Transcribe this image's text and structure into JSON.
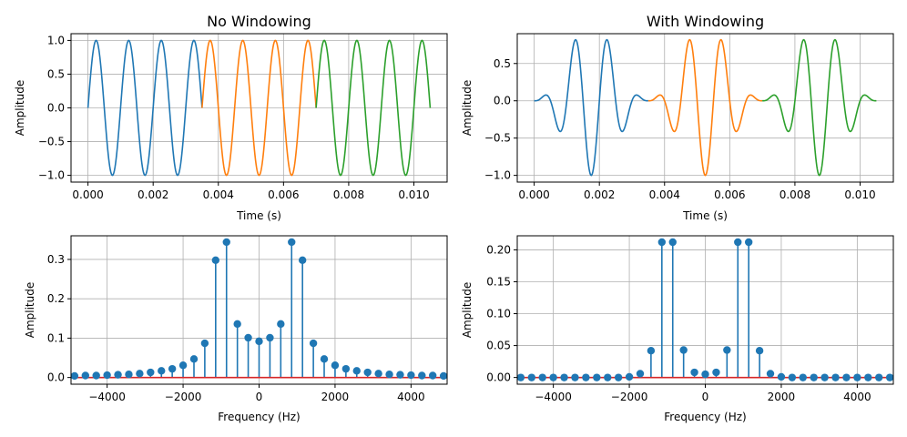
{
  "colors": {
    "blue": "#1f77b4",
    "orange": "#ff7f0e",
    "green": "#2ca02c",
    "baseline": "#d62728"
  },
  "chart_data": [
    {
      "type": "line",
      "title": "No Windowing",
      "xlabel": "Time (s)",
      "ylabel": "Amplitude",
      "xlim": [
        -0.00052,
        0.01102
      ],
      "ylim": [
        -1.1,
        1.1
      ],
      "grid": true,
      "xticks": [
        0.0,
        0.002,
        0.004,
        0.006,
        0.008,
        0.01
      ],
      "xtick_labels": [
        "0.000",
        "0.002",
        "0.004",
        "0.006",
        "0.008",
        "0.010"
      ],
      "yticks": [
        -1.0,
        -0.5,
        0.0,
        0.5,
        1.0
      ],
      "ytick_labels": [
        "−1.0",
        "−0.5",
        "0.0",
        "0.5",
        "1.0"
      ],
      "frequency_hz": 1000,
      "segment_length_s": 0.0035,
      "windowed": false,
      "series": [
        {
          "t_start": 0.0,
          "t_end": 0.0035,
          "color": "blue"
        },
        {
          "t_start": 0.0035,
          "t_end": 0.007,
          "color": "orange"
        },
        {
          "t_start": 0.007,
          "t_end": 0.0105,
          "color": "green"
        }
      ]
    },
    {
      "type": "line",
      "title": "With Windowing",
      "xlabel": "Time (s)",
      "ylabel": "Amplitude",
      "xlim": [
        -0.00052,
        0.01102
      ],
      "ylim": [
        -1.09,
        0.9
      ],
      "grid": true,
      "xticks": [
        0.0,
        0.002,
        0.004,
        0.006,
        0.008,
        0.01
      ],
      "xtick_labels": [
        "0.000",
        "0.002",
        "0.004",
        "0.006",
        "0.008",
        "0.010"
      ],
      "yticks": [
        -1.0,
        -0.5,
        0.0,
        0.5
      ],
      "ytick_labels": [
        "−1.0",
        "−0.5",
        "0.0",
        "0.5"
      ],
      "frequency_hz": 1000,
      "segment_length_s": 0.0035,
      "windowed": true,
      "series": [
        {
          "t_start": 0.0,
          "t_end": 0.0035,
          "color": "blue"
        },
        {
          "t_start": 0.0035,
          "t_end": 0.007,
          "color": "orange"
        },
        {
          "t_start": 0.007,
          "t_end": 0.0105,
          "color": "green"
        }
      ]
    },
    {
      "type": "stem",
      "title": "",
      "xlabel": "Frequency (Hz)",
      "ylabel": "Amplitude",
      "xlim": [
        -4950,
        4950
      ],
      "ylim": [
        -0.017,
        0.36
      ],
      "grid": true,
      "xticks": [
        -4000,
        -2000,
        0,
        2000,
        4000
      ],
      "xtick_labels": [
        "−4000",
        "−2000",
        "0",
        "2000",
        "4000"
      ],
      "yticks": [
        0.0,
        0.1,
        0.2,
        0.3
      ],
      "ytick_labels": [
        "0.0",
        "0.1",
        "0.2",
        "0.3"
      ],
      "color": "blue",
      "x": [
        -4857,
        -4571,
        -4286,
        -4000,
        -3714,
        -3429,
        -3143,
        -2857,
        -2571,
        -2286,
        -2000,
        -1714,
        -1429,
        -1143,
        -857,
        -571,
        -286,
        0,
        286,
        571,
        857,
        1143,
        1429,
        1714,
        2000,
        2286,
        2571,
        2857,
        3143,
        3429,
        3714,
        4000,
        4286,
        4571,
        4857
      ],
      "values": [
        0.004,
        0.005,
        0.005,
        0.006,
        0.007,
        0.008,
        0.01,
        0.013,
        0.017,
        0.022,
        0.031,
        0.047,
        0.087,
        0.298,
        0.344,
        0.136,
        0.101,
        0.092,
        0.101,
        0.136,
        0.344,
        0.298,
        0.087,
        0.047,
        0.031,
        0.022,
        0.017,
        0.013,
        0.01,
        0.008,
        0.007,
        0.006,
        0.005,
        0.005,
        0.004
      ]
    },
    {
      "type": "stem",
      "title": "",
      "xlabel": "Frequency (Hz)",
      "ylabel": "Amplitude",
      "xlim": [
        -4950,
        4950
      ],
      "ylim": [
        -0.0105,
        0.222
      ],
      "grid": true,
      "xticks": [
        -4000,
        -2000,
        0,
        2000,
        4000
      ],
      "xtick_labels": [
        "−4000",
        "−2000",
        "0",
        "2000",
        "4000"
      ],
      "yticks": [
        0.0,
        0.05,
        0.1,
        0.15,
        0.2
      ],
      "ytick_labels": [
        "0.00",
        "0.05",
        "0.10",
        "0.15",
        "0.20"
      ],
      "color": "blue",
      "x": [
        -4857,
        -4571,
        -4286,
        -4000,
        -3714,
        -3429,
        -3143,
        -2857,
        -2571,
        -2286,
        -2000,
        -1714,
        -1429,
        -1143,
        -857,
        -571,
        -286,
        0,
        286,
        571,
        857,
        1143,
        1429,
        1714,
        2000,
        2286,
        2571,
        2857,
        3143,
        3429,
        3714,
        4000,
        4286,
        4571,
        4857
      ],
      "values": [
        0.0,
        0.0,
        0.0,
        0.0,
        0.0,
        0.0,
        0.0,
        0.0,
        0.0,
        0.0,
        0.001,
        0.006,
        0.042,
        0.212,
        0.212,
        0.043,
        0.008,
        0.005,
        0.008,
        0.043,
        0.212,
        0.212,
        0.042,
        0.006,
        0.001,
        0.0,
        0.0,
        0.0,
        0.0,
        0.0,
        0.0,
        0.0,
        0.0,
        0.0,
        0.0
      ]
    }
  ]
}
